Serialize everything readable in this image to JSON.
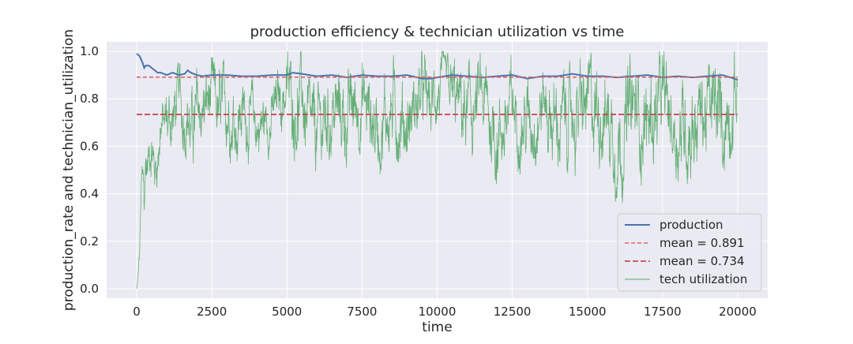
{
  "chart_data": {
    "type": "line",
    "title": "production efficiency & technician utilization vs time",
    "xlabel": "time",
    "ylabel": "production_rate and technician_utilization",
    "xlim": [
      -1000,
      21000
    ],
    "ylim": [
      -0.04,
      1.04
    ],
    "x_ticks": [
      0,
      2500,
      5000,
      7500,
      10000,
      12500,
      15000,
      17500,
      20000
    ],
    "x_tick_labels": [
      "0",
      "2500",
      "5000",
      "7500",
      "10000",
      "12500",
      "15000",
      "17500",
      "20000"
    ],
    "y_ticks": [
      0.0,
      0.2,
      0.4,
      0.6,
      0.8,
      1.0
    ],
    "y_tick_labels": [
      "0.0",
      "0.2",
      "0.4",
      "0.6",
      "0.8",
      "1.0"
    ],
    "grid": true,
    "legend_position": "lower-right",
    "series": [
      {
        "name": "production",
        "kind": "line",
        "color": "#4c72b0",
        "x": [
          0,
          100,
          200,
          250,
          300,
          400,
          500,
          600,
          700,
          800,
          900,
          1000,
          1200,
          1400,
          1600,
          1700,
          1800,
          2000,
          2200,
          2500,
          3000,
          3500,
          4000,
          4500,
          5000,
          5200,
          5500,
          6000,
          6500,
          7000,
          7500,
          8000,
          8500,
          9000,
          9500,
          9800,
          10000,
          10500,
          11000,
          11500,
          12000,
          12500,
          13000,
          13500,
          14000,
          14500,
          15000,
          15500,
          16000,
          16500,
          17000,
          17500,
          18000,
          18500,
          19000,
          19500,
          20000
        ],
        "values": [
          0.99,
          0.98,
          0.95,
          0.93,
          0.94,
          0.94,
          0.93,
          0.92,
          0.91,
          0.91,
          0.905,
          0.9,
          0.91,
          0.9,
          0.905,
          0.92,
          0.91,
          0.9,
          0.895,
          0.9,
          0.9,
          0.895,
          0.895,
          0.9,
          0.9,
          0.91,
          0.905,
          0.895,
          0.9,
          0.89,
          0.9,
          0.895,
          0.895,
          0.9,
          0.885,
          0.885,
          0.89,
          0.9,
          0.895,
          0.89,
          0.895,
          0.9,
          0.885,
          0.895,
          0.895,
          0.905,
          0.895,
          0.895,
          0.89,
          0.895,
          0.9,
          0.89,
          0.895,
          0.89,
          0.895,
          0.9,
          0.88
        ]
      },
      {
        "name": "mean = 0.891",
        "kind": "hline",
        "color": "#dd6464",
        "y": 0.891,
        "x_range": [
          0,
          20000
        ]
      },
      {
        "name": "mean = 0.734",
        "kind": "hline",
        "color": "#c44e52",
        "y": 0.734,
        "x_range": [
          0,
          20000
        ]
      },
      {
        "name": "tech utilization",
        "kind": "line",
        "color": "#55a868",
        "x": [
          0,
          50,
          100,
          150,
          200,
          250,
          300,
          400,
          500,
          600,
          700,
          800,
          900,
          1000,
          1200,
          1400,
          1500,
          1700,
          1800,
          2000,
          2200,
          2500,
          2800,
          3000,
          3300,
          3500,
          4000,
          4500,
          5000,
          5200,
          5500,
          5800,
          6000,
          6500,
          7000,
          7500,
          8000,
          8500,
          9000,
          9500,
          9800,
          10000,
          10500,
          11000,
          11500,
          12000,
          12500,
          13000,
          13500,
          14000,
          14500,
          15000,
          15500,
          16000,
          16500,
          17000,
          17500,
          18000,
          18500,
          19000,
          19500,
          19800,
          20000
        ],
        "values": [
          0.0,
          0.05,
          0.15,
          0.4,
          0.42,
          0.35,
          0.5,
          0.55,
          0.62,
          0.5,
          0.55,
          0.72,
          0.68,
          0.7,
          0.72,
          0.8,
          0.73,
          0.78,
          0.65,
          0.72,
          0.75,
          0.8,
          0.7,
          0.78,
          0.72,
          0.75,
          0.68,
          0.72,
          0.85,
          0.78,
          0.8,
          0.6,
          0.65,
          0.75,
          0.72,
          0.8,
          0.68,
          0.76,
          0.7,
          0.82,
          0.75,
          0.85,
          0.8,
          0.72,
          0.78,
          0.65,
          0.75,
          0.7,
          0.8,
          0.68,
          0.72,
          0.75,
          0.78,
          0.62,
          0.74,
          0.7,
          0.78,
          0.66,
          0.72,
          0.75,
          0.7,
          0.78,
          0.85
        ],
        "band_halfwidth": [
          0.0,
          0.03,
          0.06,
          0.12,
          0.14,
          0.12,
          0.14,
          0.12,
          0.12,
          0.12,
          0.12,
          0.14,
          0.14,
          0.16,
          0.16,
          0.16,
          0.18,
          0.18,
          0.18,
          0.18,
          0.18,
          0.16,
          0.2,
          0.18,
          0.2,
          0.16,
          0.16,
          0.14,
          0.16,
          0.2,
          0.2,
          0.22,
          0.2,
          0.2,
          0.2,
          0.2,
          0.2,
          0.2,
          0.2,
          0.18,
          0.16,
          0.16,
          0.16,
          0.2,
          0.2,
          0.2,
          0.2,
          0.2,
          0.2,
          0.2,
          0.2,
          0.22,
          0.22,
          0.24,
          0.24,
          0.22,
          0.22,
          0.22,
          0.24,
          0.22,
          0.24,
          0.2,
          0.2
        ],
        "samples_per_unit": 0.12
      }
    ]
  }
}
